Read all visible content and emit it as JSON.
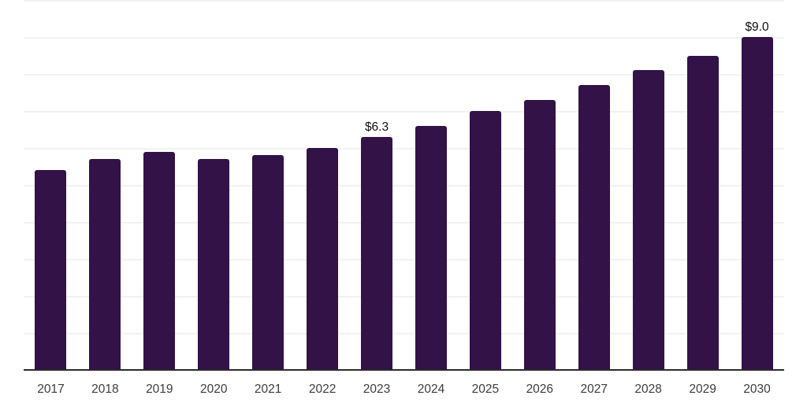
{
  "chart_data": {
    "type": "bar",
    "title": "",
    "xlabel": "",
    "ylabel": "",
    "categories": [
      "2017",
      "2018",
      "2019",
      "2020",
      "2021",
      "2022",
      "2023",
      "2024",
      "2025",
      "2026",
      "2027",
      "2028",
      "2029",
      "2030"
    ],
    "values": [
      5.4,
      5.7,
      5.9,
      5.7,
      5.8,
      6.0,
      6.3,
      6.6,
      7.0,
      7.3,
      7.7,
      8.1,
      8.5,
      9.0
    ],
    "value_labels": {
      "2023": "$6.3",
      "2030": "$9.0"
    },
    "ylim": [
      0,
      10
    ],
    "grid_step": 1,
    "grid": "horizontal-only",
    "y_axis_labels_visible": false,
    "legend": "none",
    "colors": {
      "bar": "#321247",
      "gridline": "#f2f2f2",
      "axis_line": "#2b2b2b",
      "tick_label": "#3d3d3d",
      "value_label": "#111111",
      "background": "#ffffff"
    }
  }
}
